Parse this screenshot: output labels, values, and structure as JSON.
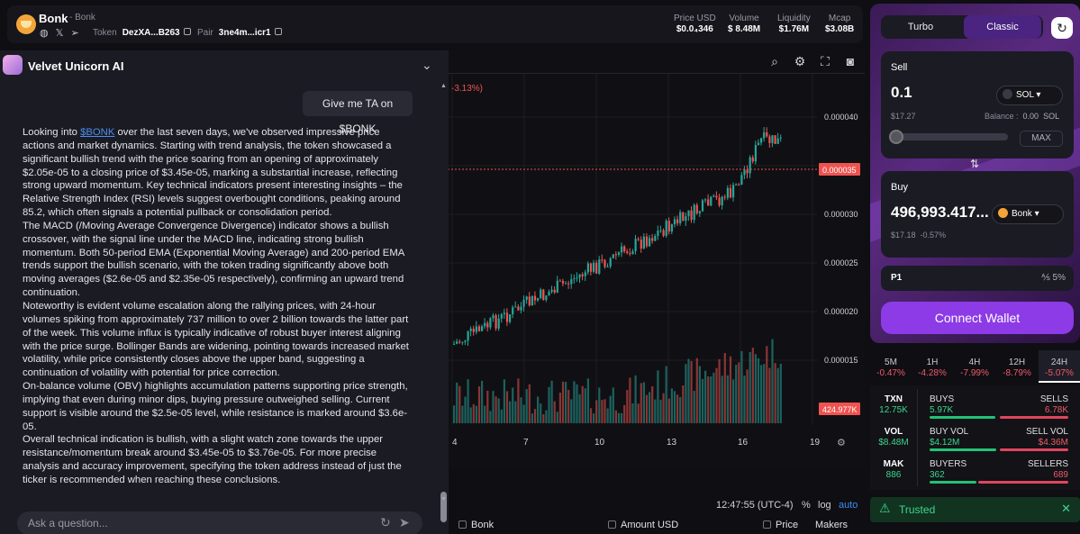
{
  "header": {
    "token_name": "Bonk",
    "token_subtitle": "- Bonk",
    "token_label": "Token",
    "token_address": "DezXA...B263",
    "pair_label": "Pair",
    "pair_address": "3ne4m...icr1",
    "stats": [
      {
        "label": "Price USD",
        "value": "$0.0₄346"
      },
      {
        "label": "Volume",
        "value": "$ 8.48M"
      },
      {
        "label": "Liquidity",
        "value": "$1.76M"
      },
      {
        "label": "Mcap",
        "value": "$3.08B"
      }
    ]
  },
  "ai_panel": {
    "title": "Velvet Unicorn AI",
    "user_message": "Give me TA on $BONK",
    "response_link": "$BONK",
    "response_intro_pre": "Looking into ",
    "response_intro_post": " over the last seven days, we've observed impressive price actions and market dynamics. Starting with trend analysis, the token showcased a significant bullish trend with the price soaring from an opening of approximately $2.05e-05 to a closing price of $3.45e-05, marking a substantial increase, reflecting strong upward momentum. Key technical indicators present interesting insights – the Relative Strength Index (RSI) levels suggest overbought conditions, peaking around 85.2, which often signals a potential pullback or consolidation period.",
    "response_paragraphs": [
      "The MACD (/Moving Average Convergence Divergence) indicator shows a bullish crossover, with the signal line under the MACD line, indicating strong bullish momentum. Both 50-period EMA (Exponential Moving Average) and 200-period EMA trends support the bullish scenario, with the token trading significantly above both moving averages ($2.6e-05 and $2.35e-05 respectively), confirming an upward trend continuation.",
      "Noteworthy is evident volume escalation along the rallying prices, with 24-hour volumes spiking from approximately 737 million to over 2 billion towards the latter part of the week. This volume influx is typically indicative of robust buyer interest aligning with the price surge. Bollinger Bands are widening, pointing towards increased market volatility, while price consistently closes above the upper band, suggesting a continuation of volatility with potential for price correction.",
      "On-balance volume (OBV) highlights accumulation patterns supporting price strength, implying that even during minor dips, buying pressure outweighed selling. Current support is visible around the $2.5e-05 level, while resistance is marked around $3.6e-05.",
      "Overall technical indication is bullish, with a slight watch zone towards the upper resistance/momentum break around $3.45e-05 to $3.76e-05. For more precise analysis and accuracy improvement, specifying the token address instead of just the ticker is recommended when reaching these conclusions."
    ],
    "input_placeholder": "Ask a question..."
  },
  "chart": {
    "change_text": "-3.13%)",
    "price_tag": "0.000035",
    "volume_tag": "424.977K",
    "time": "12:47:55 (UTC-4)",
    "pct_label": "%",
    "log_label": "log",
    "auto_label": "auto",
    "y_ticks": [
      "0.000040",
      "0.000030",
      "0.000025",
      "0.000020",
      "0.000015"
    ],
    "x_ticks": [
      "4",
      "7",
      "10",
      "13",
      "16",
      "19"
    ]
  },
  "trades_table": {
    "columns": [
      "Bonk",
      "Amount USD",
      "Price",
      "Makers"
    ]
  },
  "swap": {
    "mode_turbo": "Turbo",
    "mode_classic": "Classic",
    "sell_label": "Sell",
    "sell_amount": "0.1",
    "sell_token": "SOL",
    "sell_usd": "$17.27",
    "balance_label": "Balance :",
    "balance_value": "0.00",
    "balance_token": "SOL",
    "max_label": "MAX",
    "buy_label": "Buy",
    "buy_amount": "496,993.417...",
    "buy_token": "Bonk",
    "buy_usd": "$17.18",
    "buy_change": "-0.57%",
    "priority_label": "P1",
    "slippage": "5%",
    "connect_label": "Connect Wallet"
  },
  "timeframes": [
    {
      "label": "5M",
      "change": "-0.47%"
    },
    {
      "label": "1H",
      "change": "-4.28%"
    },
    {
      "label": "4H",
      "change": "-7.99%"
    },
    {
      "label": "12H",
      "change": "-8.79%"
    },
    {
      "label": "24H",
      "change": "-5.07%"
    }
  ],
  "stats": {
    "txn": {
      "label": "TXN",
      "value": "12.75K"
    },
    "buys": {
      "label": "BUYS",
      "value": "5.97K"
    },
    "sells": {
      "label": "SELLS",
      "value": "6.78K"
    },
    "vol": {
      "label": "VOL",
      "value": "$8.48M"
    },
    "buy_vol": {
      "label": "BUY VOL",
      "value": "$4.12M"
    },
    "sell_vol": {
      "label": "SELL VOL",
      "value": "$4.36M"
    },
    "mak": {
      "label": "MAK",
      "value": "886"
    },
    "buyers": {
      "label": "BUYERS",
      "value": "362"
    },
    "sellers": {
      "label": "SELLERS",
      "value": "689"
    }
  },
  "trusted": {
    "label": "Trusted"
  },
  "colors": {
    "up": "#26a69a",
    "down": "#ef5350",
    "accent": "#8c3be6"
  }
}
